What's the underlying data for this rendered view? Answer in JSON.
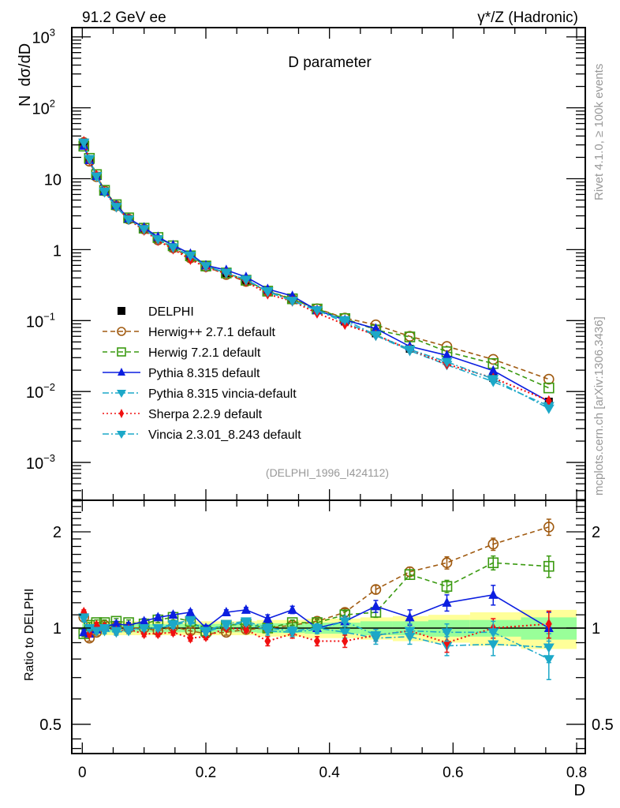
{
  "chart_data": {
    "type": "line",
    "header_left": "91.2 GeV ee",
    "header_right": "γ*/Z (Hadronic)",
    "title": "D parameter",
    "ylabel": "N  dσ/dD",
    "xlabel": "D",
    "ratio_ylabel": "Ratio to DELPHI",
    "side_label_top": "Rivet 4.1.0, ≥ 100k events",
    "side_label_bottom": "mcplots.cern.ch [arXiv:1306.3436]",
    "analysis_id": "(DELPHI_1996_I424112)",
    "xlim": [
      -0.017,
      0.814
    ],
    "ylim_log": [
      0.000293,
      1350
    ],
    "ratio_ylim_log2": [
      0.405,
      2.51
    ],
    "x_ticks": [
      {
        "v": 0,
        "label": "0"
      },
      {
        "v": 0.2,
        "label": "0.2"
      },
      {
        "v": 0.4,
        "label": "0.4"
      },
      {
        "v": 0.6,
        "label": "0.6"
      },
      {
        "v": 0.8,
        "label": "0.8"
      }
    ],
    "y_ticks": [
      {
        "v": 1000,
        "label": "10",
        "sup": "3"
      },
      {
        "v": 100,
        "label": "10",
        "sup": "2"
      },
      {
        "v": 10,
        "label": "10",
        "sup": ""
      },
      {
        "v": 1,
        "label": "1",
        "sup": ""
      },
      {
        "v": 0.1,
        "label": "10",
        "sup": "−1"
      },
      {
        "v": 0.01,
        "label": "10",
        "sup": "−2"
      },
      {
        "v": 0.001,
        "label": "10",
        "sup": "−3"
      }
    ],
    "ratio_ticks": [
      {
        "v": 2,
        "label": "2"
      },
      {
        "v": 1,
        "label": "1"
      },
      {
        "v": 0.5,
        "label": "0.5"
      }
    ],
    "x": [
      0.0025,
      0.0115,
      0.023,
      0.036,
      0.055,
      0.075,
      0.1,
      0.1225,
      0.147,
      0.175,
      0.2,
      0.233,
      0.265,
      0.3,
      0.34,
      0.38,
      0.425,
      0.475,
      0.53,
      0.59,
      0.665,
      0.755
    ],
    "data": {
      "name": "DELPHI",
      "values": [
        30,
        19,
        11,
        6.6,
        4.1,
        2.7,
        1.95,
        1.4,
        1.05,
        0.78,
        0.6,
        0.46,
        0.36,
        0.26,
        0.195,
        0.14,
        0.097,
        0.066,
        0.04,
        0.027,
        0.0155,
        0.0072
      ],
      "band_inner": [
        0.03,
        0.03,
        0.03,
        0.03,
        0.03,
        0.03,
        0.03,
        0.03,
        0.03,
        0.03,
        0.03,
        0.03,
        0.03,
        0.035,
        0.035,
        0.04,
        0.04,
        0.05,
        0.05,
        0.06,
        0.06,
        0.08
      ],
      "band_outer": [
        0.06,
        0.05,
        0.05,
        0.05,
        0.05,
        0.05,
        0.05,
        0.05,
        0.05,
        0.05,
        0.05,
        0.05,
        0.05,
        0.06,
        0.06,
        0.07,
        0.07,
        0.08,
        0.09,
        0.1,
        0.12,
        0.14
      ]
    },
    "series": [
      {
        "name": "Herwig++ 2.7.1 default",
        "color": "#a05a10",
        "dash": "6,4",
        "marker": "circle-open",
        "ratio": [
          1.08,
          0.93,
          0.97,
          1.02,
          1.01,
          1.0,
          1.0,
          0.98,
          1.01,
          0.98,
          0.96,
          0.97,
          0.99,
          1.0,
          1.02,
          1.05,
          1.12,
          1.32,
          1.5,
          1.6,
          1.83,
          2.07
        ],
        "rerr": [
          0.02,
          0.02,
          0.02,
          0.02,
          0.02,
          0.02,
          0.02,
          0.02,
          0.02,
          0.02,
          0.02,
          0.02,
          0.02,
          0.02,
          0.02,
          0.02,
          0.03,
          0.04,
          0.05,
          0.07,
          0.08,
          0.12
        ]
      },
      {
        "name": "Herwig 7.2.1 default",
        "color": "#3a9a10",
        "dash": "6,4",
        "marker": "square-open",
        "ratio": [
          0.96,
          1.02,
          1.04,
          1.04,
          1.05,
          1.04,
          1.03,
          1.06,
          1.08,
          1.05,
          0.98,
          1.02,
          1.03,
          1.0,
          1.04,
          1.04,
          1.1,
          1.12,
          1.47,
          1.35,
          1.6,
          1.56
        ],
        "rerr": [
          0.02,
          0.02,
          0.02,
          0.02,
          0.02,
          0.02,
          0.02,
          0.02,
          0.02,
          0.02,
          0.02,
          0.02,
          0.02,
          0.02,
          0.02,
          0.02,
          0.03,
          0.04,
          0.05,
          0.06,
          0.08,
          0.12
        ]
      },
      {
        "name": "Pythia 8.315 default",
        "color": "#0b1ee0",
        "dash": "",
        "marker": "triangle-up",
        "ratio": [
          0.97,
          0.96,
          0.99,
          1.01,
          1.03,
          1.02,
          1.05,
          1.08,
          1.1,
          1.12,
          1.0,
          1.12,
          1.14,
          1.07,
          1.14,
          1.0,
          1.05,
          1.17,
          1.08,
          1.2,
          1.27,
          1.0
        ],
        "rerr": [
          0.02,
          0.02,
          0.02,
          0.02,
          0.02,
          0.02,
          0.02,
          0.02,
          0.02,
          0.02,
          0.02,
          0.02,
          0.02,
          0.03,
          0.03,
          0.03,
          0.04,
          0.05,
          0.06,
          0.07,
          0.09,
          0.12
        ]
      },
      {
        "name": "Pythia 8.315 vincia-default",
        "color": "#1ca8c8",
        "dash": "8,3,2,3",
        "marker": "triangle-down",
        "ratio": [
          1.07,
          1.0,
          0.99,
          0.98,
          0.97,
          0.98,
          1.0,
          1.0,
          1.03,
          1.06,
          0.98,
          1.03,
          1.05,
          1.0,
          0.98,
          1.0,
          0.97,
          0.93,
          0.94,
          0.88,
          0.89,
          0.87
        ],
        "rerr": [
          0.02,
          0.02,
          0.02,
          0.02,
          0.02,
          0.02,
          0.02,
          0.02,
          0.02,
          0.02,
          0.02,
          0.02,
          0.02,
          0.03,
          0.03,
          0.03,
          0.04,
          0.04,
          0.05,
          0.06,
          0.07,
          0.09
        ]
      },
      {
        "name": "Sherpa 2.2.9 default",
        "color": "#f01010",
        "dash": "2,3",
        "marker": "diamond",
        "ratio": [
          1.12,
          0.96,
          1.02,
          1.01,
          0.98,
          0.99,
          0.96,
          0.96,
          0.97,
          0.93,
          0.94,
          1.0,
          0.99,
          0.91,
          0.96,
          0.91,
          0.91,
          0.95,
          0.98,
          0.9,
          1.0,
          1.03
        ],
        "rerr": [
          0.02,
          0.02,
          0.02,
          0.02,
          0.02,
          0.02,
          0.02,
          0.02,
          0.02,
          0.02,
          0.02,
          0.02,
          0.02,
          0.03,
          0.03,
          0.03,
          0.04,
          0.04,
          0.05,
          0.06,
          0.07,
          0.1
        ]
      },
      {
        "name": "Vincia 2.3.01_8.243 default",
        "color": "#1ca8c8",
        "dash": "8,3,2,3",
        "marker": "triangle-down",
        "ratio": [
          1.08,
          1.0,
          0.98,
          1.0,
          0.98,
          0.99,
          1.0,
          1.0,
          1.02,
          1.05,
          0.97,
          1.02,
          1.04,
          0.98,
          0.97,
          0.99,
          1.05,
          0.95,
          0.98,
          0.97,
          0.97,
          0.8
        ],
        "rerr": [
          0.02,
          0.02,
          0.02,
          0.02,
          0.02,
          0.02,
          0.02,
          0.02,
          0.02,
          0.02,
          0.02,
          0.02,
          0.02,
          0.03,
          0.03,
          0.03,
          0.04,
          0.04,
          0.05,
          0.06,
          0.08,
          0.11
        ]
      }
    ],
    "legend": {
      "placement": "lower-left",
      "entries": [
        {
          "label": "DELPHI",
          "marker": "square-filled"
        },
        {
          "label": "Herwig++ 2.7.1 default"
        },
        {
          "label": "Herwig 7.2.1 default"
        },
        {
          "label": "Pythia 8.315 default"
        },
        {
          "label": "Pythia 8.315 vincia-default"
        },
        {
          "label": "Sherpa 2.2.9 default"
        },
        {
          "label": "Vincia 2.3.01_8.243 default"
        }
      ]
    },
    "band_colors": {
      "outer": "#ffff99",
      "inner": "#99ff99"
    }
  }
}
